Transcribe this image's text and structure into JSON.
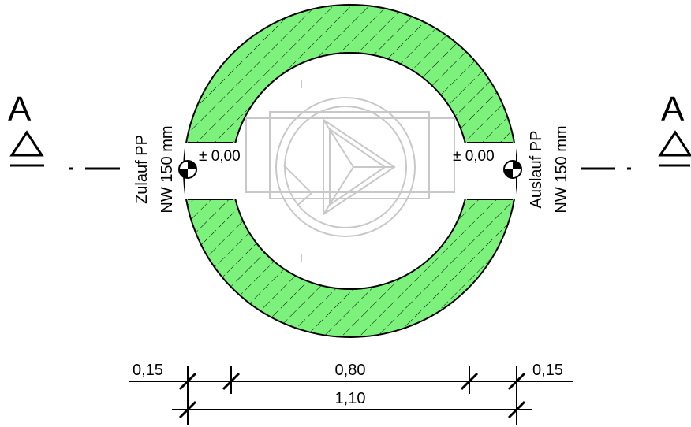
{
  "section_marker": {
    "left_letter": "A",
    "right_letter": "A"
  },
  "inlet": {
    "line1": "Zulauf PP",
    "line2": "NW 150 mm",
    "level": "± 0,00"
  },
  "outlet": {
    "line1": "Auslauf PP",
    "line2": "NW 150 mm",
    "level": "± 0,00"
  },
  "dimensions": {
    "wall_left": "0,15",
    "inner_diameter": "0,80",
    "wall_right": "0,15",
    "outer_diameter": "1,10"
  },
  "colors": {
    "wall_fill": "#7cf27c",
    "line": "#000000",
    "pump": "#c8c8c8"
  }
}
